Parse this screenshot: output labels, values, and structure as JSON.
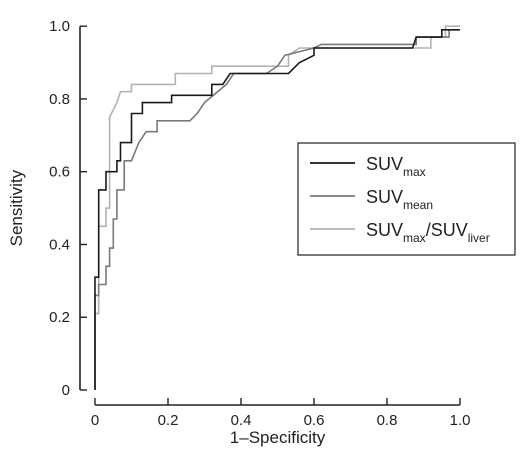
{
  "chart_data": {
    "type": "line",
    "title": "",
    "xlabel": "1–Specificity",
    "ylabel": "Sensitivity",
    "xlim": [
      0,
      1.0
    ],
    "ylim": [
      0,
      1.05
    ],
    "xticks": [
      "0",
      "0.2",
      "0.4",
      "0.6",
      "0.8",
      "1.0"
    ],
    "xtick_values": [
      0,
      0.2,
      0.4,
      0.6,
      0.8,
      1.0
    ],
    "yticks": [
      "0",
      "0.2",
      "0.4",
      "0.6",
      "0.8",
      "1.0"
    ],
    "ytick_values": [
      0,
      0.2,
      0.4,
      0.6,
      0.8,
      1.0
    ],
    "grid": false,
    "legend_position": "right",
    "series": [
      {
        "name": "SUVmax",
        "name_main": "SUV",
        "name_sub": "max",
        "color": "#1a1a1a",
        "points": [
          [
            0,
            0
          ],
          [
            0,
            0.31
          ],
          [
            0.01,
            0.31
          ],
          [
            0.01,
            0.55
          ],
          [
            0.03,
            0.55
          ],
          [
            0.03,
            0.6
          ],
          [
            0.06,
            0.6
          ],
          [
            0.06,
            0.63
          ],
          [
            0.07,
            0.63
          ],
          [
            0.07,
            0.68
          ],
          [
            0.1,
            0.68
          ],
          [
            0.1,
            0.76
          ],
          [
            0.13,
            0.76
          ],
          [
            0.13,
            0.79
          ],
          [
            0.2,
            0.79
          ],
          [
            0.21,
            0.79
          ],
          [
            0.21,
            0.81
          ],
          [
            0.29,
            0.81
          ],
          [
            0.32,
            0.81
          ],
          [
            0.32,
            0.84
          ],
          [
            0.35,
            0.84
          ],
          [
            0.37,
            0.87
          ],
          [
            0.5,
            0.87
          ],
          [
            0.53,
            0.87
          ],
          [
            0.56,
            0.9
          ],
          [
            0.6,
            0.92
          ],
          [
            0.6,
            0.94
          ],
          [
            0.87,
            0.94
          ],
          [
            0.88,
            0.97
          ],
          [
            0.95,
            0.97
          ],
          [
            0.95,
            0.99
          ],
          [
            1.0,
            0.99
          ]
        ]
      },
      {
        "name": "SUVmean",
        "name_main": "SUV",
        "name_sub": "mean",
        "color": "#7a7a7a",
        "points": [
          [
            0,
            0
          ],
          [
            0,
            0.26
          ],
          [
            0.01,
            0.26
          ],
          [
            0.01,
            0.29
          ],
          [
            0.03,
            0.29
          ],
          [
            0.03,
            0.34
          ],
          [
            0.04,
            0.34
          ],
          [
            0.04,
            0.39
          ],
          [
            0.05,
            0.39
          ],
          [
            0.05,
            0.47
          ],
          [
            0.06,
            0.47
          ],
          [
            0.06,
            0.55
          ],
          [
            0.08,
            0.55
          ],
          [
            0.08,
            0.63
          ],
          [
            0.1,
            0.63
          ],
          [
            0.12,
            0.68
          ],
          [
            0.14,
            0.71
          ],
          [
            0.17,
            0.71
          ],
          [
            0.17,
            0.74
          ],
          [
            0.26,
            0.74
          ],
          [
            0.28,
            0.76
          ],
          [
            0.3,
            0.79
          ],
          [
            0.36,
            0.84
          ],
          [
            0.38,
            0.87
          ],
          [
            0.47,
            0.87
          ],
          [
            0.5,
            0.89
          ],
          [
            0.52,
            0.92
          ],
          [
            0.6,
            0.94
          ],
          [
            0.62,
            0.95
          ],
          [
            0.88,
            0.95
          ],
          [
            0.88,
            0.97
          ],
          [
            0.97,
            0.97
          ],
          [
            0.97,
            0.99
          ],
          [
            1.0,
            0.99
          ]
        ]
      },
      {
        "name": "SUVmax/SUVliver",
        "name_main": "SUV",
        "name_sub": "max",
        "name_mid": "/SUV",
        "name_sub2": "liver",
        "color": "#b3b3b3",
        "points": [
          [
            0,
            0
          ],
          [
            0,
            0.21
          ],
          [
            0.01,
            0.21
          ],
          [
            0.01,
            0.45
          ],
          [
            0.03,
            0.45
          ],
          [
            0.03,
            0.5
          ],
          [
            0.04,
            0.5
          ],
          [
            0.04,
            0.75
          ],
          [
            0.06,
            0.79
          ],
          [
            0.07,
            0.82
          ],
          [
            0.1,
            0.82
          ],
          [
            0.1,
            0.84
          ],
          [
            0.22,
            0.84
          ],
          [
            0.22,
            0.87
          ],
          [
            0.31,
            0.87
          ],
          [
            0.32,
            0.87
          ],
          [
            0.32,
            0.89
          ],
          [
            0.53,
            0.89
          ],
          [
            0.53,
            0.92
          ],
          [
            0.56,
            0.94
          ],
          [
            0.92,
            0.94
          ],
          [
            0.92,
            0.97
          ],
          [
            0.96,
            0.97
          ],
          [
            0.96,
            1.0
          ],
          [
            1.0,
            1.0
          ]
        ]
      }
    ]
  }
}
